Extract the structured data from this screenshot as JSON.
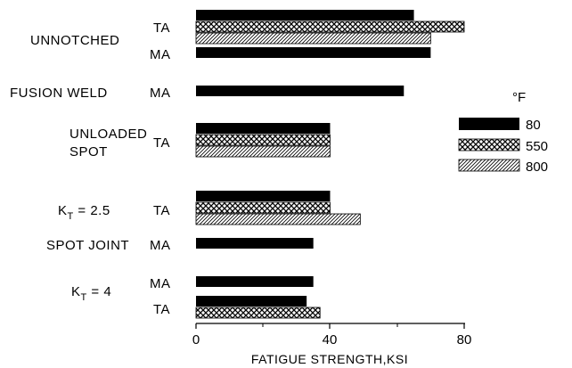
{
  "chart_data": {
    "type": "bar",
    "orientation": "horizontal",
    "xlabel": "FATIGUE STRENGTH,KSI",
    "xlim": [
      0,
      80
    ],
    "xticks": [
      "0",
      "40",
      "80"
    ],
    "legend": {
      "title": "°F",
      "position": "right",
      "entries": [
        "80",
        "550",
        "800"
      ]
    },
    "series_patterns": {
      "80": "solid black",
      "550": "cross-hatch",
      "800": "diagonal hatch"
    },
    "groups": [
      {
        "label": "UNNOTCHED",
        "rows": [
          {
            "condition": "TA",
            "bars": [
              {
                "series": "80",
                "value": 65
              },
              {
                "series": "550",
                "value": 80
              },
              {
                "series": "800",
                "value": 70
              }
            ]
          },
          {
            "condition": "MA",
            "bars": [
              {
                "series": "80",
                "value": 70
              }
            ]
          }
        ]
      },
      {
        "label": "FUSION WELD",
        "rows": [
          {
            "condition": "MA",
            "bars": [
              {
                "series": "80",
                "value": 62
              }
            ]
          }
        ]
      },
      {
        "label_lines": [
          "UNLOADED",
          "SPOT"
        ],
        "rows": [
          {
            "condition": "TA",
            "bars": [
              {
                "series": "80",
                "value": 40
              },
              {
                "series": "550",
                "value": 40
              },
              {
                "series": "800",
                "value": 40
              }
            ]
          }
        ]
      },
      {
        "label_main": "K",
        "label_sub": "T",
        "label_rest": " = 2.5",
        "rows": [
          {
            "condition": "TA",
            "bars": [
              {
                "series": "80",
                "value": 40
              },
              {
                "series": "550",
                "value": 40
              },
              {
                "series": "800",
                "value": 49
              }
            ]
          }
        ]
      },
      {
        "label": "SPOT JOINT",
        "rows": [
          {
            "condition": "MA",
            "bars": [
              {
                "series": "80",
                "value": 35
              }
            ]
          }
        ]
      },
      {
        "label_main": "K",
        "label_sub": "T",
        "label_rest": " = 4",
        "rows": [
          {
            "condition": "MA",
            "bars": [
              {
                "series": "80",
                "value": 35
              }
            ]
          },
          {
            "condition": "TA",
            "bars": [
              {
                "series": "80",
                "value": 33
              },
              {
                "series": "550",
                "value": 37
              }
            ]
          }
        ]
      }
    ]
  }
}
